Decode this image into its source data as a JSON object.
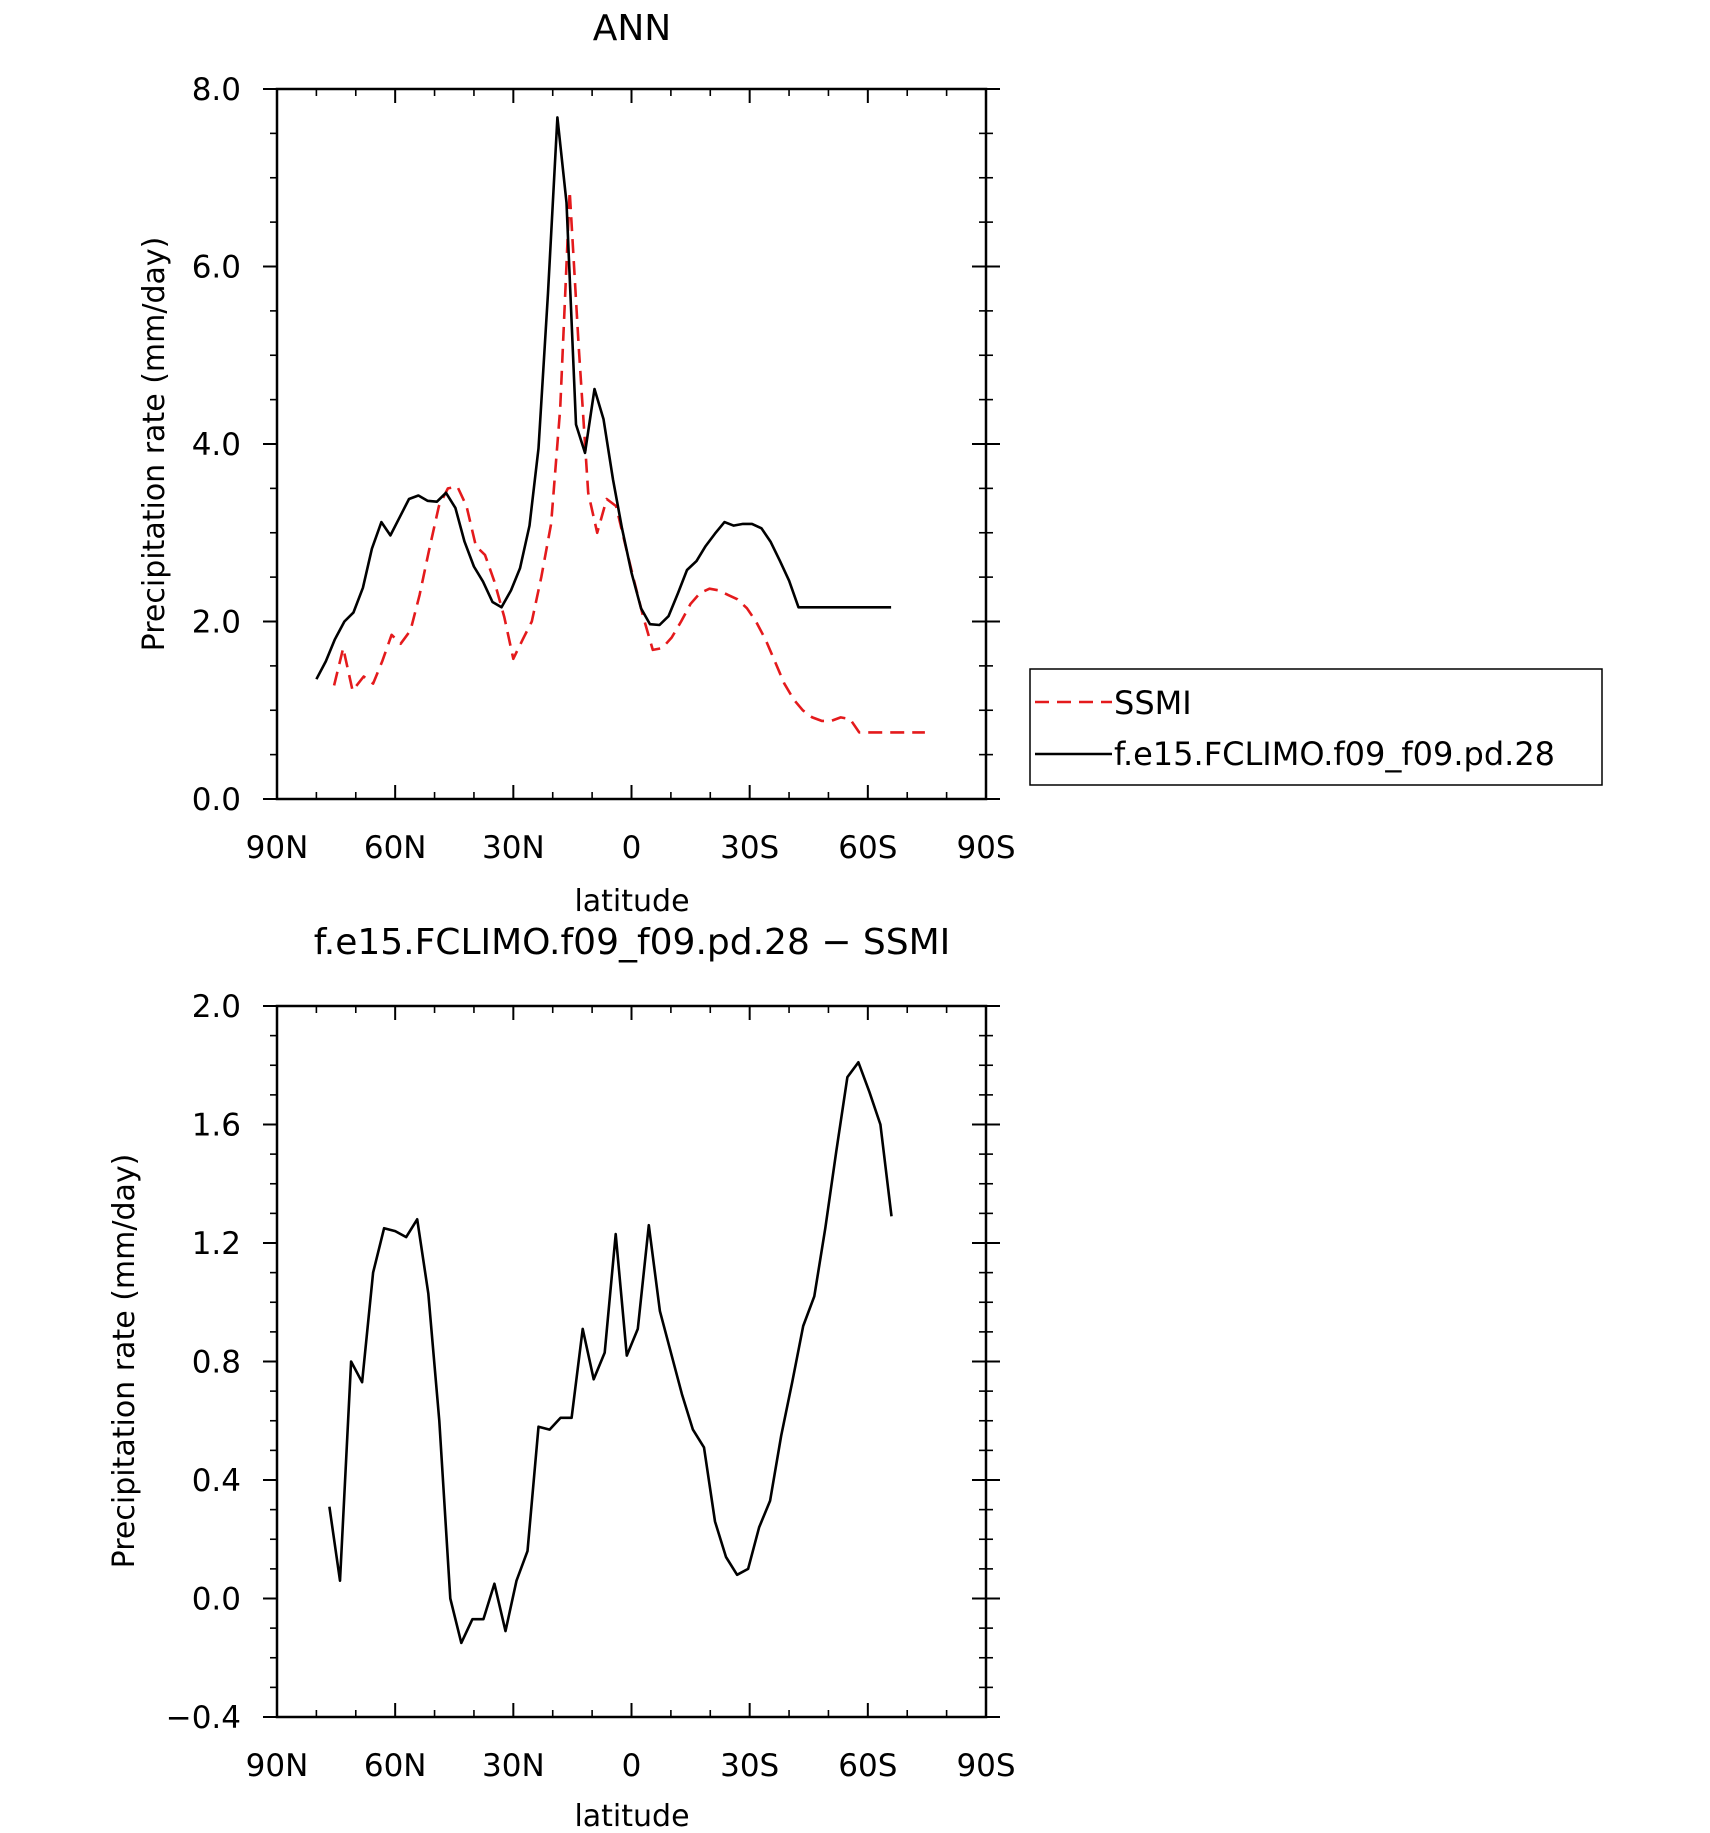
{
  "chart_data": [
    {
      "type": "line",
      "title": "ANN",
      "xlabel": "latitude",
      "ylabel": "Precipitation rate (mm/day)",
      "xlim": [
        90,
        -90
      ],
      "ylim": [
        0,
        8
      ],
      "x_ticks": [
        {
          "value": 90,
          "label": "90N"
        },
        {
          "value": 60,
          "label": "60N"
        },
        {
          "value": 30,
          "label": "30N"
        },
        {
          "value": 0,
          "label": "0"
        },
        {
          "value": -30,
          "label": "30S"
        },
        {
          "value": -60,
          "label": "60S"
        },
        {
          "value": -90,
          "label": "90S"
        }
      ],
      "y_ticks": [
        {
          "value": 0,
          "label": "0.0"
        },
        {
          "value": 2,
          "label": "2.0"
        },
        {
          "value": 4,
          "label": "4.0"
        },
        {
          "value": 6,
          "label": "6.0"
        },
        {
          "value": 8,
          "label": "8.0"
        }
      ],
      "legend": {
        "placement": "right",
        "entries": [
          "SSMI",
          "f.e15.FCLIMO.f09_f09.pd.28"
        ]
      },
      "series": [
        {
          "name": "SSMI",
          "color": "#e41a1c",
          "dash": "dashed",
          "x": [
            75.5,
            73.2,
            70.8,
            68.0,
            65.6,
            63.3,
            60.9,
            58.6,
            56.1,
            53.8,
            51.4,
            48.9,
            46.6,
            44.2,
            41.9,
            39.5,
            37.2,
            34.8,
            32.3,
            30.0,
            27.6,
            25.3,
            22.9,
            20.4,
            18.1,
            15.7,
            13.4,
            11.0,
            8.7,
            6.3,
            3.9,
            1.5,
            -0.7,
            -3.0,
            -5.4,
            -7.8,
            -10.2,
            -12.6,
            -15.0,
            -17.4,
            -19.8,
            -22.2,
            -24.5,
            -26.9,
            -29.3,
            -31.6,
            -34.0,
            -36.4,
            -38.8,
            -41.2,
            -43.5,
            -45.9,
            -48.3,
            -50.7,
            -53.1,
            -55.5,
            -57.8,
            -60.2,
            -62.6,
            -65.0,
            -67.4,
            -69.7,
            -72.1,
            -74.5
          ],
          "y": [
            1.28,
            1.7,
            1.22,
            1.38,
            1.3,
            1.55,
            1.85,
            1.75,
            1.9,
            2.3,
            2.8,
            3.3,
            3.5,
            3.52,
            3.3,
            2.85,
            2.75,
            2.45,
            2.05,
            1.58,
            1.8,
            2.0,
            2.5,
            3.1,
            4.4,
            6.85,
            5.1,
            3.45,
            3.0,
            3.38,
            3.3,
            2.85,
            2.45,
            2.05,
            1.68,
            1.7,
            1.82,
            2.0,
            2.2,
            2.32,
            2.37,
            2.35,
            2.3,
            2.25,
            2.15,
            2.0,
            1.8,
            1.55,
            1.3,
            1.12,
            1.0,
            0.92,
            0.88,
            0.88,
            0.92,
            0.9,
            0.75,
            0.75,
            0.75,
            0.75,
            0.75,
            0.75,
            0.75,
            0.75
          ]
        },
        {
          "name": "f.e15.FCLIMO.f09_f09.pd.28",
          "color": "#000000",
          "dash": "solid",
          "x": [
            80.0,
            77.6,
            75.3,
            72.9,
            70.6,
            68.2,
            65.9,
            63.5,
            61.2,
            58.8,
            56.5,
            54.1,
            51.8,
            49.4,
            47.1,
            44.7,
            42.4,
            40.0,
            37.7,
            35.3,
            33.0,
            30.6,
            28.3,
            25.9,
            23.6,
            21.2,
            18.8,
            16.5,
            14.1,
            11.8,
            9.4,
            7.1,
            4.7,
            2.4,
            0.0,
            -2.4,
            -4.7,
            -7.1,
            -9.4,
            -11.8,
            -14.1,
            -16.5,
            -18.8,
            -21.2,
            -23.6,
            -25.9,
            -28.3,
            -30.6,
            -33.0,
            -35.3,
            -37.7,
            -40.0,
            -42.4,
            -44.7,
            -47.1,
            -49.4,
            -51.8,
            -54.1,
            -56.5,
            -58.8,
            -61.2,
            -63.5,
            -65.9
          ],
          "y": [
            1.35,
            1.55,
            1.8,
            2.0,
            2.1,
            2.38,
            2.82,
            3.12,
            2.97,
            3.18,
            3.38,
            3.42,
            3.36,
            3.35,
            3.45,
            3.28,
            2.9,
            2.62,
            2.45,
            2.22,
            2.16,
            2.35,
            2.6,
            3.08,
            3.95,
            5.7,
            7.68,
            6.72,
            4.22,
            3.9,
            4.62,
            4.28,
            3.6,
            3.05,
            2.55,
            2.15,
            1.97,
            1.96,
            2.06,
            2.32,
            2.58,
            2.68,
            2.85,
            2.99,
            3.12,
            3.08,
            3.1,
            3.1,
            3.05,
            2.9,
            2.68,
            2.46,
            2.16,
            2.16,
            2.16,
            2.16,
            2.16,
            2.16,
            2.16,
            2.16,
            2.16,
            2.16,
            2.16
          ]
        }
      ]
    },
    {
      "type": "line",
      "title": "f.e15.FCLIMO.f09_f09.pd.28 − SSMI",
      "xlabel": "latitude",
      "ylabel": "Precipitation rate (mm/day)",
      "xlim": [
        90,
        -90
      ],
      "ylim": [
        -0.4,
        2.0
      ],
      "x_ticks": [
        {
          "value": 90,
          "label": "90N"
        },
        {
          "value": 60,
          "label": "60N"
        },
        {
          "value": 30,
          "label": "30N"
        },
        {
          "value": 0,
          "label": "0"
        },
        {
          "value": -30,
          "label": "30S"
        },
        {
          "value": -60,
          "label": "60S"
        },
        {
          "value": -90,
          "label": "90S"
        }
      ],
      "y_ticks": [
        {
          "value": -0.4,
          "label": "−0.4"
        },
        {
          "value": 0.0,
          "label": "0.0"
        },
        {
          "value": 0.4,
          "label": "0.4"
        },
        {
          "value": 0.8,
          "label": "0.8"
        },
        {
          "value": 1.2,
          "label": "1.2"
        },
        {
          "value": 1.6,
          "label": "1.6"
        },
        {
          "value": 2.0,
          "label": "2.0"
        }
      ],
      "series": [
        {
          "color": "#000000",
          "dash": "solid",
          "x": [
            76.7,
            74.0,
            71.2,
            68.4,
            65.6,
            62.8,
            60.0,
            57.2,
            54.4,
            51.6,
            48.8,
            46.0,
            43.2,
            40.4,
            37.6,
            34.8,
            32.0,
            29.2,
            26.4,
            23.6,
            20.8,
            18.0,
            15.2,
            12.4,
            9.6,
            6.8,
            4.0,
            1.2,
            -1.6,
            -4.4,
            -7.2,
            -10.0,
            -12.8,
            -15.6,
            -18.4,
            -21.2,
            -24.0,
            -26.8,
            -29.6,
            -32.4,
            -35.2,
            -38.0,
            -40.8,
            -43.6,
            -46.4,
            -49.2,
            -52.0,
            -54.8,
            -57.6,
            -60.4,
            -63.2,
            -66.0
          ],
          "y": [
            0.31,
            0.06,
            0.8,
            0.73,
            1.1,
            1.25,
            1.24,
            1.22,
            1.28,
            1.03,
            0.6,
            0.0,
            -0.15,
            -0.07,
            -0.07,
            0.05,
            -0.11,
            0.06,
            0.16,
            0.58,
            0.57,
            0.61,
            0.61,
            0.91,
            0.74,
            0.83,
            1.23,
            0.82,
            0.91,
            1.26,
            0.97,
            0.83,
            0.69,
            0.57,
            0.51,
            0.26,
            0.14,
            0.08,
            0.1,
            0.24,
            0.33,
            0.55,
            0.73,
            0.92,
            1.02,
            1.25,
            1.51,
            1.76,
            1.81,
            1.71,
            1.6,
            1.29
          ]
        }
      ]
    }
  ]
}
